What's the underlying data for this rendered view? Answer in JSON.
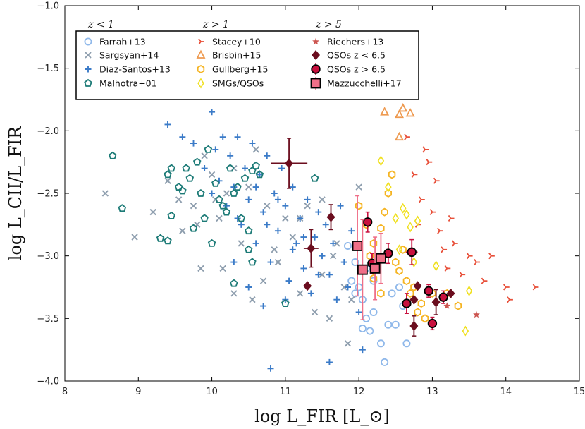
{
  "chart_data": {
    "type": "scatter",
    "title": "",
    "xlabel": "log L_FIR [L_⊙]",
    "ylabel": "log L_CII/L_FIR",
    "xlim": [
      8,
      15
    ],
    "ylim": [
      -4.0,
      -1.0
    ],
    "xticks": [
      8,
      9,
      10,
      11,
      12,
      13,
      14,
      15
    ],
    "yticks": [
      -4.0,
      -3.5,
      -3.0,
      -2.5,
      -2.0,
      -1.5,
      -1.0
    ],
    "grid": false,
    "legend_location": "top-left",
    "legend_headers": [
      "z < 1",
      "z > 1",
      "z > 5"
    ],
    "series": [
      {
        "name": "Farrah+13",
        "group": "z < 1",
        "marker": "circle-open",
        "color": "#8fb8ea",
        "points": [
          [
            11.85,
            -2.92
          ],
          [
            11.95,
            -3.05
          ],
          [
            12.0,
            -3.25
          ],
          [
            12.05,
            -3.35
          ],
          [
            11.9,
            -3.2
          ],
          [
            12.1,
            -3.5
          ],
          [
            12.15,
            -3.6
          ],
          [
            12.2,
            -3.45
          ],
          [
            12.3,
            -3.7
          ],
          [
            12.35,
            -3.85
          ],
          [
            12.4,
            -3.55
          ],
          [
            12.45,
            -3.3
          ],
          [
            12.5,
            -3.55
          ],
          [
            12.55,
            -3.25
          ],
          [
            12.6,
            -3.4
          ],
          [
            12.65,
            -3.7
          ],
          [
            12.2,
            -3.2
          ],
          [
            12.1,
            -3.1
          ],
          [
            11.95,
            -3.3
          ],
          [
            12.05,
            -3.58
          ]
        ]
      },
      {
        "name": "Sargsyan+14",
        "group": "z < 1",
        "marker": "x",
        "color": "#8e9eae",
        "points": [
          [
            8.55,
            -2.5
          ],
          [
            8.95,
            -2.85
          ],
          [
            9.2,
            -2.65
          ],
          [
            9.4,
            -2.4
          ],
          [
            9.55,
            -2.55
          ],
          [
            9.6,
            -2.8
          ],
          [
            9.75,
            -2.6
          ],
          [
            9.9,
            -2.2
          ],
          [
            10.0,
            -2.35
          ],
          [
            10.1,
            -2.7
          ],
          [
            10.2,
            -2.5
          ],
          [
            10.3,
            -2.3
          ],
          [
            10.4,
            -2.9
          ],
          [
            10.5,
            -2.45
          ],
          [
            10.6,
            -2.15
          ],
          [
            10.7,
            -3.2
          ],
          [
            10.75,
            -2.6
          ],
          [
            10.85,
            -2.95
          ],
          [
            10.9,
            -3.05
          ],
          [
            11.0,
            -2.7
          ],
          [
            11.1,
            -2.85
          ],
          [
            11.2,
            -3.3
          ],
          [
            11.3,
            -2.6
          ],
          [
            11.4,
            -3.45
          ],
          [
            11.5,
            -3.15
          ],
          [
            11.6,
            -3.5
          ],
          [
            11.7,
            -2.9
          ],
          [
            11.8,
            -3.25
          ],
          [
            11.9,
            -3.35
          ],
          [
            12.0,
            -2.45
          ],
          [
            11.85,
            -3.7
          ],
          [
            10.15,
            -3.1
          ],
          [
            10.3,
            -3.3
          ],
          [
            9.8,
            -2.75
          ],
          [
            10.05,
            -2.55
          ],
          [
            9.85,
            -3.1
          ],
          [
            10.55,
            -3.35
          ],
          [
            11.2,
            -2.7
          ],
          [
            11.5,
            -2.55
          ],
          [
            11.65,
            -3.0
          ]
        ]
      },
      {
        "name": "Diaz-Santos+13",
        "group": "z < 1",
        "marker": "plus",
        "color": "#3b7bc8",
        "points": [
          [
            9.4,
            -1.95
          ],
          [
            9.6,
            -2.05
          ],
          [
            9.75,
            -2.1
          ],
          [
            9.9,
            -2.3
          ],
          [
            10.0,
            -1.85
          ],
          [
            10.05,
            -2.15
          ],
          [
            10.1,
            -2.4
          ],
          [
            10.15,
            -2.05
          ],
          [
            10.2,
            -2.6
          ],
          [
            10.25,
            -2.2
          ],
          [
            10.3,
            -2.45
          ],
          [
            10.35,
            -2.05
          ],
          [
            10.4,
            -2.75
          ],
          [
            10.45,
            -2.3
          ],
          [
            10.5,
            -2.55
          ],
          [
            10.55,
            -2.1
          ],
          [
            10.6,
            -2.9
          ],
          [
            10.65,
            -2.35
          ],
          [
            10.7,
            -2.65
          ],
          [
            10.75,
            -2.2
          ],
          [
            10.8,
            -3.05
          ],
          [
            10.85,
            -2.5
          ],
          [
            10.9,
            -2.8
          ],
          [
            10.95,
            -2.3
          ],
          [
            11.0,
            -2.6
          ],
          [
            11.05,
            -3.2
          ],
          [
            11.1,
            -2.45
          ],
          [
            11.15,
            -2.9
          ],
          [
            11.2,
            -2.7
          ],
          [
            11.25,
            -3.1
          ],
          [
            11.3,
            -2.55
          ],
          [
            11.35,
            -3.3
          ],
          [
            11.4,
            -2.85
          ],
          [
            11.45,
            -2.65
          ],
          [
            11.5,
            -3.0
          ],
          [
            11.55,
            -2.75
          ],
          [
            11.6,
            -3.15
          ],
          [
            11.65,
            -2.9
          ],
          [
            11.7,
            -3.35
          ],
          [
            11.75,
            -2.6
          ],
          [
            11.8,
            -3.05
          ],
          [
            11.85,
            -3.25
          ],
          [
            11.9,
            -2.8
          ],
          [
            12.0,
            -3.45
          ],
          [
            12.05,
            -3.75
          ],
          [
            10.3,
            -3.05
          ],
          [
            10.5,
            -3.25
          ],
          [
            10.7,
            -3.4
          ],
          [
            10.8,
            -3.9
          ],
          [
            11.0,
            -3.35
          ],
          [
            11.6,
            -3.85
          ],
          [
            10.2,
            -1.7
          ],
          [
            10.0,
            -2.5
          ],
          [
            10.35,
            -2.7
          ],
          [
            10.9,
            -2.55
          ],
          [
            11.25,
            -2.85
          ],
          [
            11.45,
            -3.15
          ],
          [
            10.6,
            -2.45
          ],
          [
            10.75,
            -2.75
          ],
          [
            11.1,
            -2.95
          ]
        ]
      },
      {
        "name": "Malhotra+01",
        "group": "z < 1",
        "marker": "pentagon-open",
        "color": "#1d7b77",
        "points": [
          [
            8.65,
            -2.2
          ],
          [
            8.78,
            -2.62
          ],
          [
            9.3,
            -2.86
          ],
          [
            9.4,
            -2.88
          ],
          [
            9.4,
            -2.35
          ],
          [
            9.45,
            -2.3
          ],
          [
            9.45,
            -2.68
          ],
          [
            9.55,
            -2.45
          ],
          [
            9.6,
            -2.48
          ],
          [
            9.65,
            -2.3
          ],
          [
            9.7,
            -2.38
          ],
          [
            9.75,
            -2.78
          ],
          [
            9.8,
            -2.25
          ],
          [
            9.85,
            -2.5
          ],
          [
            9.9,
            -2.7
          ],
          [
            9.95,
            -2.15
          ],
          [
            10.0,
            -2.9
          ],
          [
            10.05,
            -2.42
          ],
          [
            10.1,
            -2.55
          ],
          [
            10.15,
            -2.6
          ],
          [
            10.2,
            -2.65
          ],
          [
            10.25,
            -2.3
          ],
          [
            10.3,
            -2.5
          ],
          [
            10.35,
            -2.45
          ],
          [
            10.4,
            -2.7
          ],
          [
            10.45,
            -2.38
          ],
          [
            10.5,
            -2.8
          ],
          [
            10.5,
            -2.95
          ],
          [
            10.55,
            -2.32
          ],
          [
            10.55,
            -3.05
          ],
          [
            10.6,
            -2.28
          ],
          [
            10.65,
            -2.35
          ],
          [
            10.3,
            -3.22
          ],
          [
            11.0,
            -3.38
          ],
          [
            11.4,
            -2.38
          ]
        ]
      },
      {
        "name": "Stacey+10",
        "group": "z > 1",
        "marker": "tri-right",
        "color": "#e8503a",
        "points": [
          [
            12.65,
            -2.05
          ],
          [
            12.75,
            -2.35
          ],
          [
            12.85,
            -2.55
          ],
          [
            12.9,
            -2.15
          ],
          [
            13.0,
            -2.65
          ],
          [
            13.05,
            -2.4
          ],
          [
            13.1,
            -2.8
          ],
          [
            13.15,
            -2.95
          ],
          [
            13.2,
            -3.1
          ],
          [
            13.3,
            -2.9
          ],
          [
            13.4,
            -3.15
          ],
          [
            13.5,
            -3.0
          ],
          [
            13.7,
            -3.2
          ],
          [
            13.8,
            -3.0
          ],
          [
            14.0,
            -3.25
          ],
          [
            14.05,
            -3.35
          ],
          [
            14.4,
            -3.25
          ],
          [
            12.95,
            -2.25
          ],
          [
            13.25,
            -2.7
          ],
          [
            13.6,
            -3.05
          ],
          [
            12.8,
            -2.75
          ]
        ]
      },
      {
        "name": "Brisbin+15",
        "group": "z > 1",
        "marker": "triangle-open",
        "color": "#ee9a50",
        "points": [
          [
            12.35,
            -1.85
          ],
          [
            12.55,
            -1.87
          ],
          [
            12.6,
            -1.82
          ],
          [
            12.7,
            -1.86
          ],
          [
            12.55,
            -2.05
          ]
        ]
      },
      {
        "name": "Gullberg+15",
        "group": "z > 1",
        "marker": "hexagon-open",
        "color": "#f5b422",
        "points": [
          [
            12.0,
            -2.6
          ],
          [
            12.1,
            -2.75
          ],
          [
            12.2,
            -2.9
          ],
          [
            12.3,
            -2.78
          ],
          [
            12.35,
            -2.65
          ],
          [
            12.4,
            -2.5
          ],
          [
            12.45,
            -2.35
          ],
          [
            12.5,
            -3.05
          ],
          [
            12.55,
            -3.12
          ],
          [
            12.6,
            -2.95
          ],
          [
            12.65,
            -3.2
          ],
          [
            12.7,
            -3.3
          ],
          [
            12.75,
            -3.25
          ],
          [
            12.8,
            -3.45
          ],
          [
            12.85,
            -3.38
          ],
          [
            12.9,
            -3.5
          ],
          [
            13.0,
            -3.3
          ],
          [
            13.2,
            -3.3
          ],
          [
            13.35,
            -3.4
          ],
          [
            12.3,
            -3.3
          ],
          [
            12.2,
            -3.18
          ],
          [
            12.15,
            -3.0
          ]
        ]
      },
      {
        "name": "SMGs/QSOs",
        "group": "z > 1",
        "marker": "diamond-open",
        "color": "#f0e020",
        "points": [
          [
            12.3,
            -2.24
          ],
          [
            12.4,
            -2.45
          ],
          [
            12.6,
            -2.62
          ],
          [
            12.65,
            -2.67
          ],
          [
            12.7,
            -2.77
          ],
          [
            12.8,
            -2.72
          ],
          [
            12.55,
            -2.95
          ],
          [
            13.05,
            -3.08
          ],
          [
            13.5,
            -3.28
          ],
          [
            13.45,
            -3.6
          ],
          [
            12.75,
            -3.05
          ],
          [
            12.5,
            -2.7
          ]
        ]
      },
      {
        "name": "Riechers+13",
        "group": "z > 5",
        "marker": "star",
        "color": "#cc5550",
        "points": [
          [
            13.6,
            -3.47
          ],
          [
            13.2,
            -3.4
          ]
        ]
      },
      {
        "name": "QSOs z < 6.5",
        "group": "z > 5",
        "marker": "diamond-filled",
        "color": "#6b0d1e",
        "errorbars": true,
        "points": [
          [
            11.05,
            -2.26,
            0.25,
            0.2
          ],
          [
            11.35,
            -2.94,
            0.1,
            0.15
          ],
          [
            11.62,
            -2.69,
            0.05,
            0.1
          ],
          [
            11.3,
            -3.24,
            0,
            0
          ],
          [
            12.75,
            -3.56,
            0,
            0.08
          ],
          [
            12.8,
            -3.24,
            0,
            0
          ],
          [
            13.25,
            -3.3,
            0,
            0
          ],
          [
            13.05,
            -3.37,
            0.05,
            0.1
          ],
          [
            12.75,
            -3.35,
            0,
            0
          ]
        ]
      },
      {
        "name": "QSOs z > 6.5",
        "group": "z > 5",
        "marker": "circle-filled",
        "color": "#c8103e",
        "errorbars": true,
        "points": [
          [
            12.12,
            -2.73,
            0.05,
            0.08
          ],
          [
            12.18,
            -3.06,
            0.05,
            0.08
          ],
          [
            12.4,
            -2.98,
            0.05,
            0.08
          ],
          [
            12.72,
            -2.97,
            0.08,
            0.1
          ],
          [
            12.65,
            -3.38,
            0.05,
            0.08
          ],
          [
            12.95,
            -3.28,
            0.05,
            0.05
          ],
          [
            13.15,
            -3.33,
            0.05,
            0.05
          ],
          [
            13.0,
            -3.54,
            0.05,
            0.05
          ]
        ]
      },
      {
        "name": "Mazzucchelli+17",
        "group": "z > 5",
        "marker": "square-filled",
        "color": "#ef6f88",
        "errorbars": true,
        "points": [
          [
            11.98,
            -2.92,
            0.05,
            0.4
          ],
          [
            12.05,
            -3.11,
            0.05,
            0.4
          ],
          [
            12.3,
            -3.02,
            0.05,
            0.2
          ],
          [
            12.22,
            -3.1,
            0.05,
            0.25
          ]
        ]
      }
    ]
  }
}
